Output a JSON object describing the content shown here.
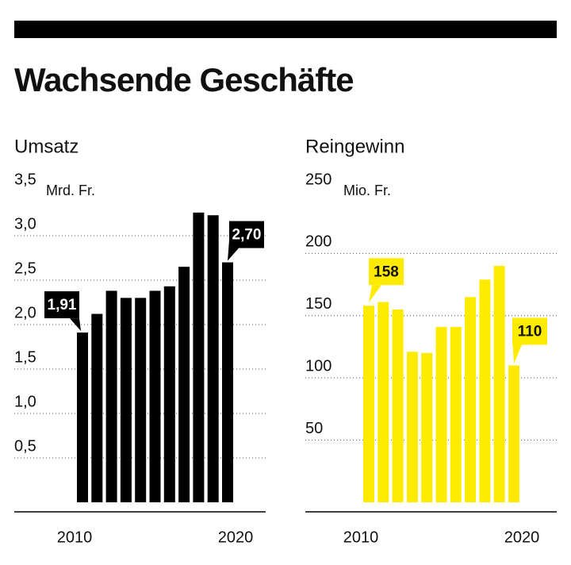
{
  "title": "Wachsende Geschäfte",
  "chart_data": [
    {
      "type": "bar",
      "title": "Umsatz",
      "unit": "Mrd. Fr.",
      "color": "#000000",
      "categories": [
        "2010",
        null,
        null,
        null,
        null,
        null,
        null,
        null,
        null,
        null,
        "2020"
      ],
      "values": [
        1.91,
        2.12,
        2.38,
        2.3,
        2.3,
        2.38,
        2.43,
        2.65,
        3.26,
        3.23,
        2.7
      ],
      "value_labels": [
        "1,91",
        null,
        null,
        null,
        null,
        null,
        null,
        null,
        null,
        null,
        "2,70"
      ],
      "ylim": [
        0,
        3.5
      ],
      "yticks": [
        {
          "value": 0.5,
          "label": "0,5"
        },
        {
          "value": 1,
          "label": "1,0"
        },
        {
          "value": 1.5,
          "label": "1,5"
        },
        {
          "value": 2,
          "label": "2,0"
        },
        {
          "value": 2.5,
          "label": "2,5"
        },
        {
          "value": 3,
          "label": "3,0"
        },
        {
          "value": 3.5,
          "label": "3,5"
        }
      ],
      "grid": true
    },
    {
      "type": "bar",
      "title": "Reingewinn",
      "unit": "Mio. Fr.",
      "color": "#ffeb00",
      "categories": [
        "2010",
        null,
        null,
        null,
        null,
        null,
        null,
        null,
        null,
        null,
        "2020"
      ],
      "values": [
        158,
        161,
        155,
        121,
        120,
        141,
        141,
        165,
        179,
        190,
        110
      ],
      "ylim": [
        0,
        250
      ],
      "yticks": [
        50,
        100,
        150,
        200,
        250
      ],
      "grid": true
    }
  ]
}
